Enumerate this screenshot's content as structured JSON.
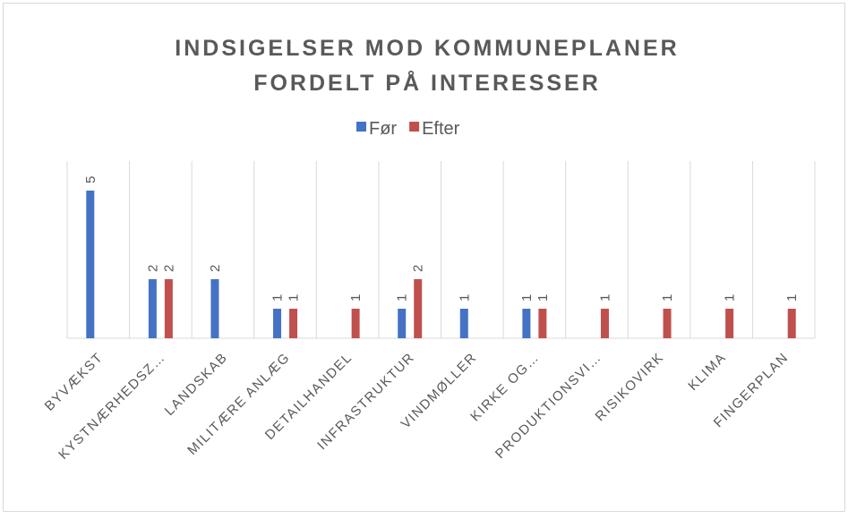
{
  "chart_data": {
    "type": "bar",
    "title": [
      "INDSIGELSER MOD KOMMUNEPLANER",
      "FORDELT PÅ INTERESSER"
    ],
    "categories": [
      "BYVÆKST",
      "KYSTNÆRHEDSZ…",
      "LANDSKAB",
      "MILITÆRE ANLÆG",
      "DETAILHANDEL",
      "INFRASTRUKTUR",
      "VINDMØLLER",
      "KIRKE OG…",
      "PRODUKTIONSVI…",
      "RISIKOVIRK",
      "KLIMA",
      "FINGERPLAN"
    ],
    "series": [
      {
        "name": "Før",
        "color": "#4472c4",
        "values": [
          5,
          2,
          2,
          1,
          null,
          1,
          1,
          1,
          null,
          null,
          null,
          null
        ]
      },
      {
        "name": "Efter",
        "color": "#c0504d",
        "values": [
          null,
          2,
          null,
          1,
          1,
          2,
          null,
          1,
          1,
          1,
          1,
          1
        ]
      }
    ],
    "ylim": [
      0,
      6
    ],
    "legend": "top"
  }
}
